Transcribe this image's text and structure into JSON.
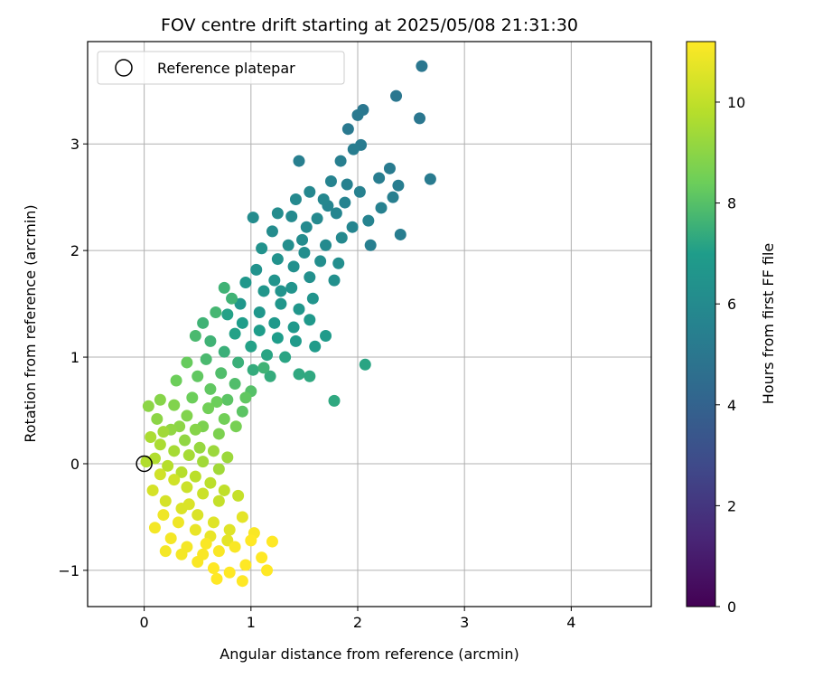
{
  "chart_data": {
    "type": "scatter",
    "title": "FOV centre drift starting at 2025/05/08 21:31:30",
    "xlabel": "Angular distance from reference (arcmin)",
    "ylabel": "Rotation from reference (arcmin)",
    "xlim": [
      -0.53,
      4.75
    ],
    "ylim": [
      -1.34,
      3.96
    ],
    "xticks": [
      0,
      1,
      2,
      3,
      4
    ],
    "yticks": [
      -1,
      0,
      1,
      2,
      3
    ],
    "xtick_labels": [
      "0",
      "1",
      "2",
      "3",
      "4"
    ],
    "ytick_labels": [
      "−1",
      "0",
      "1",
      "2",
      "3"
    ],
    "grid": true,
    "legend": {
      "label": "Reference platepar",
      "placement": "top-left"
    },
    "reference_point": {
      "x": 0,
      "y": 0
    },
    "colorbar": {
      "label": "Hours from first FF file",
      "colormap": "viridis",
      "range": [
        0,
        11.2
      ],
      "ticks": [
        0,
        2,
        4,
        6,
        8,
        10
      ],
      "tick_labels": [
        "0",
        "2",
        "4",
        "6",
        "8",
        "10"
      ]
    },
    "viridis_stops": [
      "#440154",
      "#482777",
      "#3f4a8a",
      "#31678e",
      "#26838f",
      "#1f9d8a",
      "#6cce5a",
      "#b6de2b",
      "#fee825"
    ],
    "points": [
      [
        2.6,
        3.73,
        5.0
      ],
      [
        2.36,
        3.45,
        5.0
      ],
      [
        2.05,
        3.32,
        5.0
      ],
      [
        2.58,
        3.24,
        5.0
      ],
      [
        2.0,
        3.27,
        5.1
      ],
      [
        1.91,
        3.14,
        5.1
      ],
      [
        2.03,
        2.99,
        5.2
      ],
      [
        2.68,
        2.67,
        5.2
      ],
      [
        2.3,
        2.77,
        5.2
      ],
      [
        2.38,
        2.61,
        5.3
      ],
      [
        1.96,
        2.95,
        5.3
      ],
      [
        1.45,
        2.84,
        5.4
      ],
      [
        1.84,
        2.84,
        5.4
      ],
      [
        2.2,
        2.68,
        5.3
      ],
      [
        2.4,
        2.15,
        5.3
      ],
      [
        2.33,
        2.5,
        5.4
      ],
      [
        2.12,
        2.05,
        5.4
      ],
      [
        2.22,
        2.4,
        5.5
      ],
      [
        2.02,
        2.55,
        5.5
      ],
      [
        1.75,
        2.65,
        5.6
      ],
      [
        1.88,
        2.45,
        5.6
      ],
      [
        2.1,
        2.28,
        5.6
      ],
      [
        1.95,
        2.22,
        5.7
      ],
      [
        1.8,
        2.35,
        5.7
      ],
      [
        1.68,
        2.48,
        5.8
      ],
      [
        1.55,
        2.55,
        5.8
      ],
      [
        1.42,
        2.48,
        5.9
      ],
      [
        1.62,
        2.3,
        5.9
      ],
      [
        1.85,
        2.12,
        5.9
      ],
      [
        1.7,
        2.05,
        6.0
      ],
      [
        1.52,
        2.22,
        6.0
      ],
      [
        1.38,
        2.32,
        6.0
      ],
      [
        1.25,
        2.35,
        6.1
      ],
      [
        1.02,
        2.31,
        6.1
      ],
      [
        1.2,
        2.18,
        6.1
      ],
      [
        1.35,
        2.05,
        6.2
      ],
      [
        1.5,
        1.98,
        6.2
      ],
      [
        1.65,
        1.9,
        6.2
      ],
      [
        1.82,
        1.88,
        6.2
      ],
      [
        1.78,
        1.72,
        6.3
      ],
      [
        1.55,
        1.75,
        6.3
      ],
      [
        1.4,
        1.85,
        6.3
      ],
      [
        1.25,
        1.92,
        6.4
      ],
      [
        1.1,
        2.02,
        6.4
      ],
      [
        1.05,
        1.82,
        6.4
      ],
      [
        1.22,
        1.72,
        6.5
      ],
      [
        1.38,
        1.65,
        6.5
      ],
      [
        1.58,
        1.55,
        6.5
      ],
      [
        1.45,
        1.45,
        6.6
      ],
      [
        1.28,
        1.5,
        6.6
      ],
      [
        1.12,
        1.62,
        6.6
      ],
      [
        0.95,
        1.7,
        6.7
      ],
      [
        0.9,
        1.5,
        6.7
      ],
      [
        1.08,
        1.42,
        6.7
      ],
      [
        1.22,
        1.32,
        6.8
      ],
      [
        1.4,
        1.28,
        6.8
      ],
      [
        1.55,
        1.35,
        6.8
      ],
      [
        1.7,
        1.2,
        6.9
      ],
      [
        1.6,
        1.1,
        6.9
      ],
      [
        1.42,
        1.15,
        6.9
      ],
      [
        1.25,
        1.18,
        7.0
      ],
      [
        1.08,
        1.25,
        7.0
      ],
      [
        0.92,
        1.32,
        7.0
      ],
      [
        0.78,
        1.4,
        7.1
      ],
      [
        0.85,
        1.22,
        7.1
      ],
      [
        1.0,
        1.1,
        7.1
      ],
      [
        1.15,
        1.02,
        7.2
      ],
      [
        1.32,
        1.0,
        7.2
      ],
      [
        1.45,
        0.84,
        7.3
      ],
      [
        1.55,
        0.82,
        7.3
      ],
      [
        1.78,
        0.59,
        7.3
      ],
      [
        2.07,
        0.93,
        7.2
      ],
      [
        1.18,
        0.82,
        7.4
      ],
      [
        1.02,
        0.88,
        7.4
      ],
      [
        0.88,
        0.95,
        7.5
      ],
      [
        0.75,
        1.05,
        7.5
      ],
      [
        0.62,
        1.15,
        7.6
      ],
      [
        0.55,
        1.32,
        7.6
      ],
      [
        0.67,
        1.42,
        7.7
      ],
      [
        0.75,
        1.65,
        7.6
      ],
      [
        0.82,
        1.55,
        7.6
      ],
      [
        0.48,
        1.2,
        7.8
      ],
      [
        0.58,
        0.98,
        7.8
      ],
      [
        0.72,
        0.85,
        7.9
      ],
      [
        0.85,
        0.75,
        7.9
      ],
      [
        1.0,
        0.68,
        8.0
      ],
      [
        0.92,
        0.49,
        8.1
      ],
      [
        0.78,
        0.6,
        8.1
      ],
      [
        0.62,
        0.7,
        8.2
      ],
      [
        0.5,
        0.82,
        8.2
      ],
      [
        0.4,
        0.95,
        8.3
      ],
      [
        0.3,
        0.78,
        8.4
      ],
      [
        0.45,
        0.62,
        8.4
      ],
      [
        0.6,
        0.52,
        8.5
      ],
      [
        0.75,
        0.42,
        8.5
      ],
      [
        0.86,
        0.35,
        8.6
      ],
      [
        0.7,
        0.28,
        8.7
      ],
      [
        0.55,
        0.35,
        8.7
      ],
      [
        0.4,
        0.45,
        8.8
      ],
      [
        0.28,
        0.55,
        8.8
      ],
      [
        0.15,
        0.6,
        8.9
      ],
      [
        0.04,
        0.54,
        9.0
      ],
      [
        0.12,
        0.42,
        9.0
      ],
      [
        0.25,
        0.32,
        9.1
      ],
      [
        0.38,
        0.22,
        9.1
      ],
      [
        0.52,
        0.15,
        9.2
      ],
      [
        0.65,
        0.12,
        9.3
      ],
      [
        0.78,
        0.06,
        9.3
      ],
      [
        0.7,
        -0.05,
        9.4
      ],
      [
        0.55,
        0.02,
        9.4
      ],
      [
        0.42,
        0.08,
        9.5
      ],
      [
        0.28,
        0.12,
        9.5
      ],
      [
        0.15,
        0.18,
        9.6
      ],
      [
        0.06,
        0.25,
        9.6
      ],
      [
        0.02,
        0.02,
        9.7
      ],
      [
        0.1,
        0.05,
        9.7
      ],
      [
        0.22,
        -0.02,
        9.8
      ],
      [
        0.35,
        -0.08,
        9.8
      ],
      [
        0.48,
        -0.12,
        9.9
      ],
      [
        0.62,
        -0.18,
        9.9
      ],
      [
        0.75,
        -0.25,
        10.0
      ],
      [
        0.88,
        -0.3,
        10.1
      ],
      [
        0.7,
        -0.35,
        10.1
      ],
      [
        0.55,
        -0.28,
        10.2
      ],
      [
        0.4,
        -0.22,
        10.2
      ],
      [
        0.28,
        -0.15,
        10.3
      ],
      [
        0.15,
        -0.1,
        10.3
      ],
      [
        0.08,
        -0.25,
        10.4
      ],
      [
        0.2,
        -0.35,
        10.4
      ],
      [
        0.35,
        -0.42,
        10.5
      ],
      [
        0.5,
        -0.48,
        10.5
      ],
      [
        0.65,
        -0.55,
        10.6
      ],
      [
        0.8,
        -0.62,
        10.6
      ],
      [
        0.92,
        -0.5,
        10.7
      ],
      [
        0.78,
        -0.72,
        10.7
      ],
      [
        0.62,
        -0.68,
        10.8
      ],
      [
        0.48,
        -0.62,
        10.8
      ],
      [
        0.32,
        -0.55,
        10.9
      ],
      [
        0.18,
        -0.48,
        10.9
      ],
      [
        0.1,
        -0.6,
        11.0
      ],
      [
        0.25,
        -0.7,
        11.0
      ],
      [
        0.4,
        -0.78,
        11.0
      ],
      [
        0.55,
        -0.85,
        11.1
      ],
      [
        0.7,
        -0.82,
        11.1
      ],
      [
        0.85,
        -0.78,
        11.1
      ],
      [
        1.0,
        -0.72,
        11.2
      ],
      [
        1.1,
        -0.88,
        11.2
      ],
      [
        0.95,
        -0.95,
        11.2
      ],
      [
        0.8,
        -1.02,
        11.2
      ],
      [
        0.65,
        -0.98,
        11.2
      ],
      [
        0.5,
        -0.92,
        11.1
      ],
      [
        0.35,
        -0.85,
        11.0
      ],
      [
        0.2,
        -0.82,
        11.0
      ],
      [
        0.92,
        -1.1,
        11.2
      ],
      [
        1.15,
        -1.0,
        11.2
      ],
      [
        1.2,
        -0.73,
        11.2
      ],
      [
        1.03,
        -0.65,
        11.1
      ],
      [
        0.68,
        -1.08,
        11.2
      ],
      [
        0.58,
        -0.75,
        11.1
      ],
      [
        0.42,
        -0.38,
        10.5
      ],
      [
        0.33,
        0.35,
        9.0
      ],
      [
        0.18,
        0.3,
        9.4
      ],
      [
        0.48,
        0.32,
        8.9
      ],
      [
        0.68,
        0.58,
        8.4
      ],
      [
        0.95,
        0.62,
        8.2
      ],
      [
        1.12,
        0.9,
        7.6
      ],
      [
        1.28,
        1.62,
        6.5
      ],
      [
        1.48,
        2.1,
        6.1
      ],
      [
        1.72,
        2.42,
        5.7
      ],
      [
        1.9,
        2.62,
        5.5
      ]
    ]
  }
}
